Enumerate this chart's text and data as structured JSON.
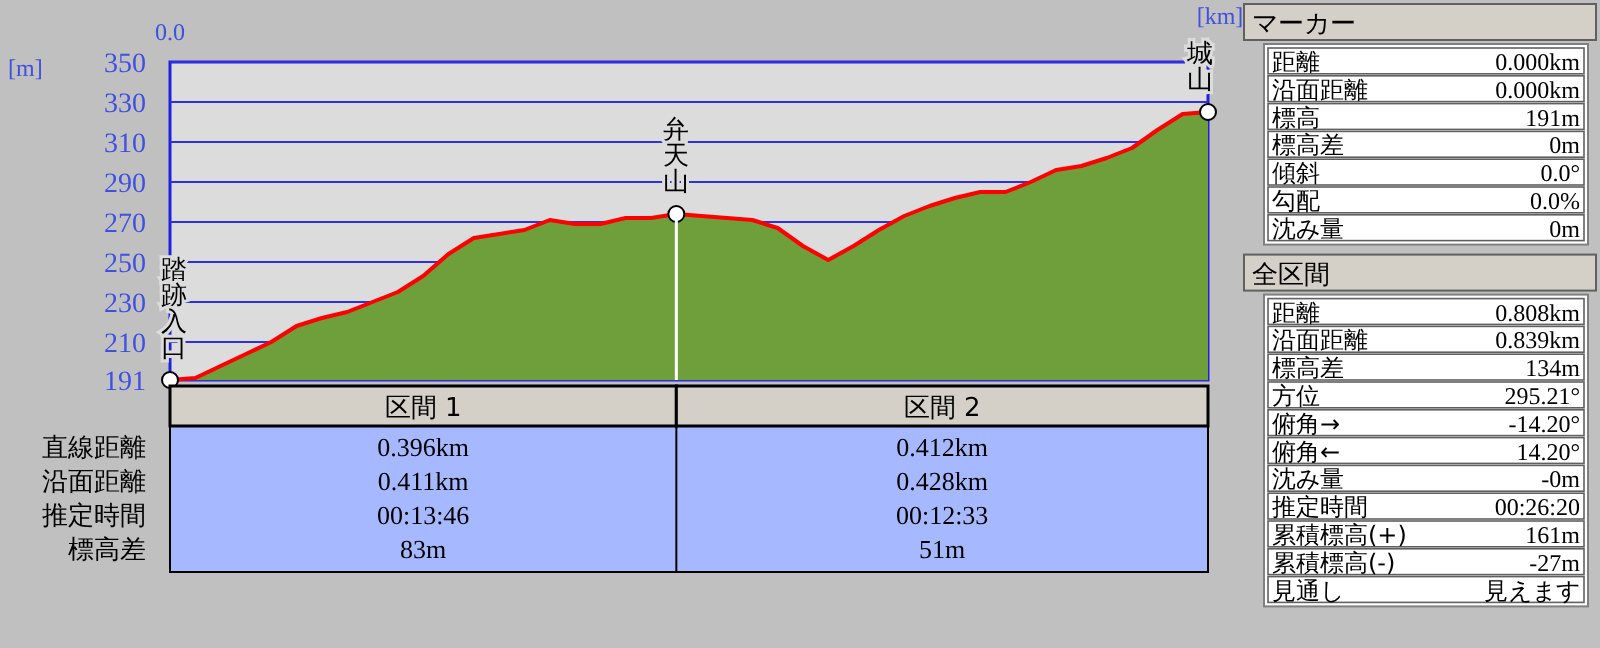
{
  "chart_data": [
    {
      "type": "area",
      "xlabel": "[km]",
      "ylabel": "[m]",
      "ylim": [
        191,
        350
      ],
      "yticks": [
        191,
        210,
        230,
        250,
        270,
        290,
        310,
        330,
        350
      ],
      "grid": "y",
      "categories": [
        "0.0",
        null,
        null,
        null,
        null,
        null,
        null,
        null,
        null,
        null,
        null,
        null,
        null,
        null,
        null,
        null,
        null,
        null,
        null,
        null,
        null,
        null,
        null,
        null,
        null,
        null,
        null,
        null,
        null,
        null,
        null,
        null,
        null,
        null,
        null,
        null,
        null,
        null,
        null,
        null,
        null,
        null
      ],
      "series": [
        {
          "color": "#6f9f3a",
          "values": [
            191,
            192,
            198,
            204,
            210,
            218,
            222,
            225,
            230,
            235,
            243,
            254,
            262,
            264,
            266,
            271,
            269,
            269,
            272,
            272,
            274,
            273,
            272,
            271,
            267,
            258,
            251,
            258,
            266,
            273,
            278,
            282,
            285,
            285,
            290,
            296,
            298,
            302,
            307,
            316,
            324,
            325
          ]
        }
      ],
      "annotations": [
        {
          "text": "踏跡入口",
          "y": 191
        },
        {
          "text": "弁天山",
          "y": 274
        },
        {
          "text": "城山",
          "y": 325
        },
        "区間 1",
        "区間 2",
        "直線距離",
        "沿面距離",
        "推定時間",
        "標高差",
        "0.396km",
        "0.412km",
        "0.411km",
        "0.428km",
        "00:13:46",
        "00:12:33",
        "83m",
        "51m"
      ]
    },
    {
      "type": "other",
      "title": "マーカー",
      "annotations": [
        "距離",
        "0.000km",
        "沿面距離",
        "0.000km",
        "標高",
        "191m",
        "標高差",
        "0m",
        "傾斜",
        "0.0°",
        "勾配",
        "0.0%",
        "沈み量",
        "0m"
      ]
    },
    {
      "type": "other",
      "title": "全区間",
      "annotations": [
        "距離",
        "0.808km",
        "沿面距離",
        "0.839km",
        "標高差",
        "134m",
        "方位",
        "295.21°",
        "俯角→",
        "-14.20°",
        "俯角←",
        "14.20°",
        "沈み量",
        "-0m",
        "推定時間",
        "00:26:20",
        "累積標高(+)",
        "161m",
        "累積標高(-)",
        "-27m",
        "見通し",
        "見えます"
      ]
    }
  ]
}
